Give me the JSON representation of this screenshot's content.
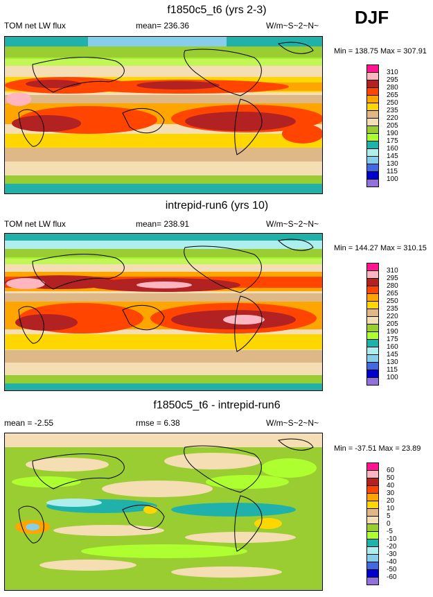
{
  "season": "DJF",
  "panels": [
    {
      "title": "f1850c5_t6 (yrs 2-3)",
      "left": "TOM net LW flux",
      "center": "mean= 236.36",
      "right": "W/m~S~2~N~",
      "minmax": "Min = 138.75 Max = 307.91",
      "legend_labels": [
        "310",
        "295",
        "280",
        "265",
        "250",
        "235",
        "220",
        "205",
        "190",
        "175",
        "160",
        "145",
        "130",
        "115",
        "100"
      ]
    },
    {
      "title": "intrepid-run6 (yrs 10)",
      "left": "TOM net LW flux",
      "center": "mean= 238.91",
      "right": "W/m~S~2~N~",
      "minmax": "Min = 144.27 Max = 310.15",
      "legend_labels": [
        "310",
        "295",
        "280",
        "265",
        "250",
        "235",
        "220",
        "205",
        "190",
        "175",
        "160",
        "145",
        "130",
        "115",
        "100"
      ]
    },
    {
      "title": "f1850c5_t6 - intrepid-run6",
      "left": "mean =  -2.55",
      "center": "rmse =   6.38",
      "right": "W/m~S~2~N~",
      "minmax": "Min = -37.51 Max =  23.89",
      "legend_labels": [
        "60",
        "50",
        "40",
        "30",
        "20",
        "10",
        "5",
        "0",
        "-5",
        "-10",
        "-20",
        "-30",
        "-40",
        "-50",
        "-60"
      ]
    }
  ],
  "colors": {
    "abs_scale": [
      "#ff1493",
      "#ffb6c1",
      "#b22222",
      "#ff4500",
      "#ffa500",
      "#ffd700",
      "#deb887",
      "#f5deb3",
      "#9acd32",
      "#adff2f",
      "#20b2aa",
      "#afeeee",
      "#87ceeb",
      "#4169e1",
      "#0000cd",
      "#9370db"
    ],
    "diff_scale": [
      "#ff1493",
      "#ffb6c1",
      "#b22222",
      "#ff4500",
      "#ffa500",
      "#ffd700",
      "#deb887",
      "#f5deb3",
      "#9acd32",
      "#adff2f",
      "#20b2aa",
      "#afeeee",
      "#87ceeb",
      "#4169e1",
      "#0000cd",
      "#9370db"
    ]
  }
}
